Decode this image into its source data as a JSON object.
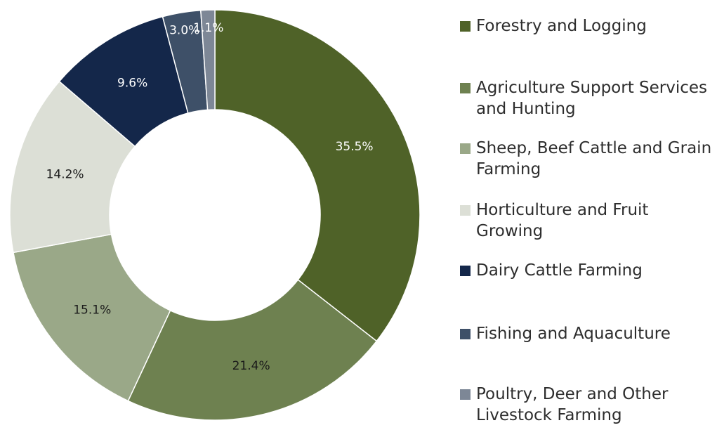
{
  "chart_data": {
    "type": "pie",
    "donut": true,
    "title": "",
    "legend_position": "right",
    "slices": [
      {
        "label": "Forestry and Logging",
        "value": 35.5,
        "value_label": "35.5%",
        "color": "#4f6228",
        "label_color": "#ffffff"
      },
      {
        "label": "Agriculture Support Services and Hunting",
        "value": 21.4,
        "value_label": "21.4%",
        "color": "#6e8150",
        "label_color": "#1a1a1a"
      },
      {
        "label": "Sheep, Beef Cattle and Grain Farming",
        "value": 15.1,
        "value_label": "15.1%",
        "color": "#9aa888",
        "label_color": "#1a1a1a"
      },
      {
        "label": "Horticulture and Fruit Growing",
        "value": 14.2,
        "value_label": "14.2%",
        "color": "#dcdfd6",
        "label_color": "#1a1a1a"
      },
      {
        "label": "Dairy Cattle Farming",
        "value": 9.6,
        "value_label": "9.6%",
        "color": "#14274a",
        "label_color": "#ffffff"
      },
      {
        "label": "Fishing and Aquaculture",
        "value": 3.0,
        "value_label": "3.0%",
        "color": "#3e5068",
        "label_color": "#ffffff"
      },
      {
        "label": "Poultry, Deer and Other Livestock Farming",
        "value": 1.1,
        "value_label": "1.1%",
        "color": "#7d8796",
        "label_color": "#ffffff"
      }
    ]
  }
}
